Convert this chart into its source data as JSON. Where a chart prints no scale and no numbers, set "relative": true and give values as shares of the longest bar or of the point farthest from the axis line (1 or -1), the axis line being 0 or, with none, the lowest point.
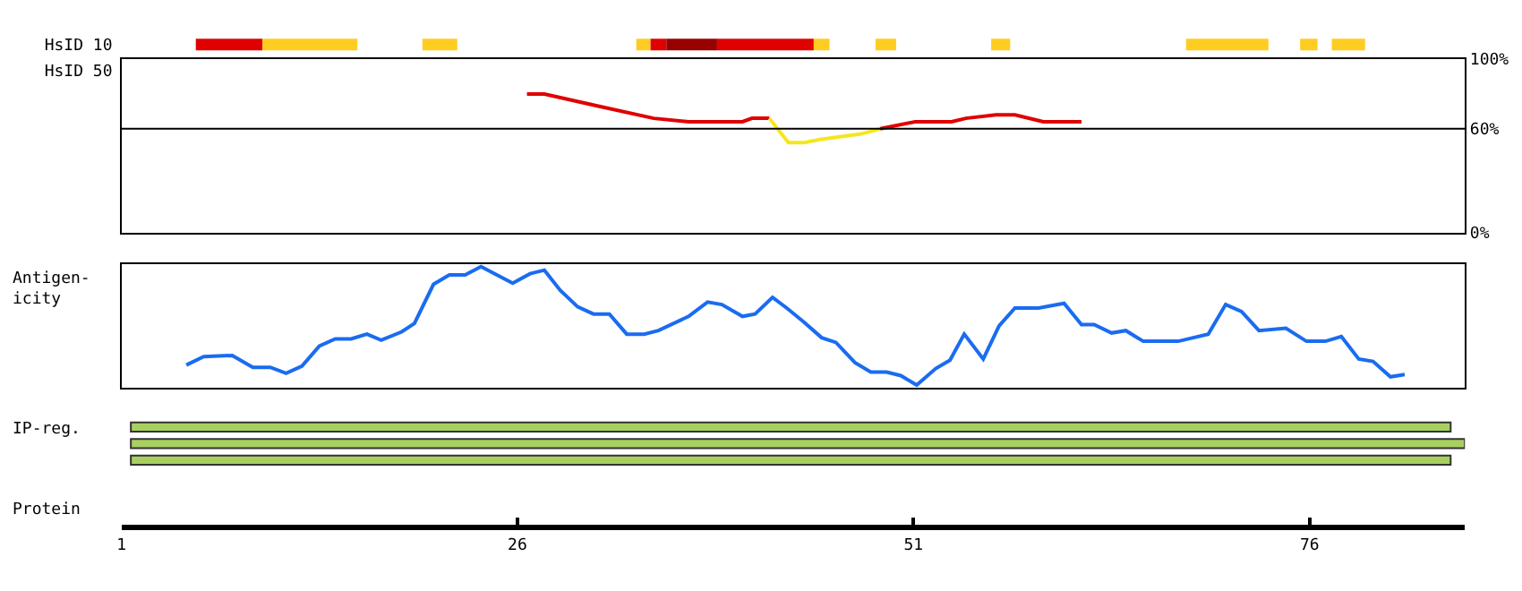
{
  "chart_data": [
    {
      "type": "bar",
      "orientation": "horizontal",
      "categories": [
        "HsID 10",
        "HsID 50"
      ],
      "xlim": [
        1,
        85.8
      ],
      "tick_labels": "y",
      "series": [
        {
          "color": "#e00000",
          "values": [
            4.2,
            null
          ],
          "base": [
            5.7,
            null
          ]
        },
        {
          "color": "#ffcc22",
          "values": [
            6.0,
            null
          ],
          "base": [
            9.9,
            null
          ]
        },
        {
          "color": "#ffcc22",
          "values": [
            2.2,
            null
          ],
          "base": [
            20.0,
            null
          ]
        },
        {
          "color": "#ffcc22",
          "values": [
            0.9,
            null
          ],
          "base": [
            33.5,
            null
          ]
        },
        {
          "color": "#e00000",
          "values": [
            1.0,
            null
          ],
          "base": [
            34.4,
            null
          ]
        },
        {
          "color": "#990000",
          "values": [
            3.2,
            null
          ],
          "base": [
            35.4,
            null
          ]
        },
        {
          "color": "#e00000",
          "values": [
            6.1,
            null
          ],
          "base": [
            38.6,
            null
          ]
        },
        {
          "color": "#ffcc22",
          "values": [
            1.0,
            null
          ],
          "base": [
            44.7,
            null
          ]
        },
        {
          "color": "#ffcc22",
          "values": [
            1.3,
            null
          ],
          "base": [
            48.6,
            null
          ]
        },
        {
          "color": "#ffcc22",
          "values": [
            1.2,
            null
          ],
          "base": [
            55.9,
            null
          ]
        },
        {
          "color": "#ffcc22",
          "values": [
            5.2,
            null
          ],
          "base": [
            68.2,
            null
          ]
        },
        {
          "color": "#ffcc22",
          "values": [
            1.1,
            null
          ],
          "base": [
            75.4,
            null
          ]
        },
        {
          "color": "#ffcc22",
          "values": [
            2.1,
            null
          ],
          "base": [
            77.4,
            null
          ]
        }
      ]
    },
    {
      "type": "line",
      "xlim": [
        1,
        85.8
      ],
      "ylim": [
        0,
        100
      ],
      "yticks": [
        {
          "value": 0,
          "label": "0%"
        },
        {
          "value": 60,
          "label": "60%"
        },
        {
          "value": 100,
          "label": "100%"
        }
      ],
      "tick_labels": "y",
      "ref_lines": [
        {
          "axis": "y",
          "value": 60,
          "color": "#000000"
        }
      ],
      "series": [
        {
          "color": "#e00000",
          "x": [
            26.6,
            27.7,
            31.1,
            34.6,
            36.8,
            40.2,
            40.8,
            41.9
          ],
          "values": [
            80,
            80,
            73,
            66,
            64,
            64,
            66,
            66
          ]
        },
        {
          "color": "#f5e61e",
          "x": [
            41.9,
            43.1,
            44.1,
            45.2,
            47.7,
            48.9
          ],
          "values": [
            66,
            52,
            52,
            54,
            57,
            60
          ]
        },
        {
          "color": "#e00000",
          "x": [
            48.9,
            51.1,
            53.4,
            54.3,
            56.2,
            57.4,
            59.2,
            61.6
          ],
          "values": [
            60,
            64,
            64,
            66,
            68,
            68,
            64,
            64
          ]
        }
      ]
    },
    {
      "type": "line",
      "relative": true,
      "ylabel": "Antigen-\nicity",
      "xlim": [
        1,
        85.8
      ],
      "tick_labels": false,
      "x": [
        5.1,
        6.2,
        8.0,
        9.3,
        10.4,
        11.4,
        12.4,
        13.5,
        14.5,
        15.5,
        16.5,
        17.4,
        18.7,
        19.5,
        20.7,
        21.7,
        22.7,
        23.7,
        25.7,
        26.8,
        27.7,
        28.7,
        29.8,
        30.8,
        31.8,
        32.9,
        34.0,
        34.9,
        36.8,
        38.0,
        38.9,
        40.2,
        41.0,
        42.1,
        43.0,
        44.1,
        45.2,
        46.1,
        47.3,
        48.3,
        49.3,
        50.2,
        51.2,
        52.4,
        53.3,
        54.2,
        55.4,
        56.4,
        57.4,
        58.9,
        60.5,
        61.6,
        62.4,
        63.5,
        64.4,
        65.5,
        67.7,
        69.6,
        70.7,
        71.7,
        72.8,
        74.5,
        75.8,
        77.0,
        78.0,
        79.1,
        80.0,
        81.1,
        82.0
      ],
      "series": [
        {
          "color": "#1a6cf0",
          "values": [
            0.17,
            0.24,
            0.25,
            0.15,
            0.15,
            0.1,
            0.16,
            0.33,
            0.39,
            0.39,
            0.43,
            0.38,
            0.45,
            0.52,
            0.85,
            0.93,
            0.93,
            1.0,
            0.86,
            0.94,
            0.97,
            0.8,
            0.66,
            0.6,
            0.6,
            0.43,
            0.43,
            0.46,
            0.58,
            0.7,
            0.68,
            0.58,
            0.6,
            0.74,
            0.65,
            0.53,
            0.4,
            0.36,
            0.19,
            0.11,
            0.11,
            0.08,
            0.0,
            0.14,
            0.21,
            0.43,
            0.22,
            0.5,
            0.65,
            0.65,
            0.69,
            0.51,
            0.51,
            0.44,
            0.46,
            0.37,
            0.37,
            0.43,
            0.68,
            0.62,
            0.46,
            0.48,
            0.37,
            0.37,
            0.41,
            0.22,
            0.2,
            0.07,
            0.09
          ]
        }
      ]
    },
    {
      "type": "bar",
      "orientation": "horizontal",
      "categories": [
        null,
        null,
        null
      ],
      "ylabel": "IP-reg.",
      "xlabel": "Protein",
      "xlim": [
        1,
        85.8
      ],
      "xticks": [
        1,
        26,
        51,
        76
      ],
      "tick_labels": "x",
      "series": [
        {
          "color": "#a8d060",
          "values": [
            83.3,
            84.2,
            83.3
          ],
          "base": [
            1.6,
            1.6,
            1.6
          ]
        }
      ]
    }
  ]
}
